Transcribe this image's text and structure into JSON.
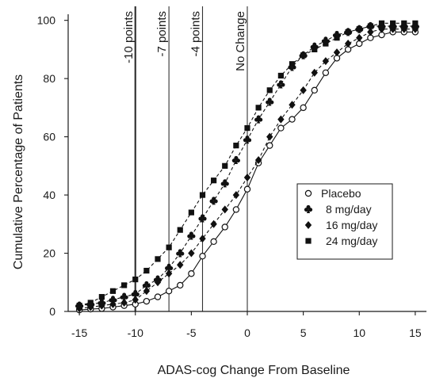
{
  "chart_data": {
    "type": "line",
    "title": "",
    "xlabel": "ADAS-cog Change From Baseline",
    "ylabel": "Cumulative Percentage of Patients",
    "xlim": [
      -16,
      16
    ],
    "ylim": [
      0,
      101
    ],
    "x_ticks": [
      -15,
      -10,
      -5,
      0,
      5,
      10,
      15
    ],
    "y_ticks": [
      0,
      20,
      40,
      60,
      80,
      100
    ],
    "grid": false,
    "legend_position": "right, middle",
    "reference_lines": [
      {
        "x": -10,
        "label": "-10 points",
        "bold": true
      },
      {
        "x": -7,
        "label": "-7 points",
        "bold": false
      },
      {
        "x": -4,
        "label": "-4 points",
        "bold": false
      },
      {
        "x": 0,
        "label": "No Change",
        "bold": false
      }
    ],
    "series": [
      {
        "name": "Placebo",
        "marker": "circle-open",
        "line": "solid",
        "color": "#111111",
        "x": [
          -15,
          -14,
          -13,
          -12,
          -11,
          -10,
          -9,
          -8,
          -7,
          -6,
          -5,
          -4,
          -3,
          -2,
          -1,
          0,
          1,
          2,
          3,
          4,
          5,
          6,
          7,
          8,
          9,
          10,
          11,
          12,
          13,
          14,
          15
        ],
        "values": [
          0.5,
          0.8,
          1,
          1.5,
          2,
          2.5,
          3.5,
          5,
          7,
          9,
          13,
          19,
          24,
          29,
          35,
          42,
          51,
          57,
          63,
          66,
          70,
          76,
          82,
          87,
          90,
          92,
          94,
          95,
          96,
          96,
          96
        ]
      },
      {
        "name": "8 mg/day",
        "marker": "club",
        "line": "dashed",
        "color": "#111111",
        "x": [
          -15,
          -14,
          -13,
          -12,
          -11,
          -10,
          -9,
          -8,
          -7,
          -6,
          -5,
          -4,
          -3,
          -2,
          -1,
          0,
          1,
          2,
          3,
          4,
          5,
          6,
          7,
          8,
          9,
          10,
          11,
          12,
          13,
          14,
          15
        ],
        "values": [
          2,
          2.5,
          3,
          4,
          5,
          6,
          9,
          11,
          15,
          20,
          26,
          32,
          38,
          44,
          52,
          59,
          66,
          72,
          78,
          84,
          88,
          91,
          93,
          95,
          96,
          97,
          98,
          98,
          98,
          98,
          98
        ]
      },
      {
        "name": "16 mg/day",
        "marker": "diamond",
        "line": "dashed",
        "color": "#111111",
        "x": [
          -15,
          -14,
          -13,
          -12,
          -11,
          -10,
          -9,
          -8,
          -7,
          -6,
          -5,
          -4,
          -3,
          -2,
          -1,
          0,
          1,
          2,
          3,
          4,
          5,
          6,
          7,
          8,
          9,
          10,
          11,
          12,
          13,
          14,
          15
        ],
        "values": [
          1,
          1.5,
          2,
          2.5,
          3,
          4,
          7,
          10,
          13,
          16,
          20,
          25,
          30,
          35,
          40,
          46,
          52,
          60,
          66,
          71,
          76,
          82,
          86,
          89,
          92,
          94,
          96,
          97,
          97,
          97,
          97
        ]
      },
      {
        "name": "24 mg/day",
        "marker": "square",
        "line": "dashed",
        "color": "#111111",
        "x": [
          -15,
          -14,
          -13,
          -12,
          -11,
          -10,
          -9,
          -8,
          -7,
          -6,
          -5,
          -4,
          -3,
          -2,
          -1,
          0,
          1,
          2,
          3,
          4,
          5,
          6,
          7,
          8,
          9,
          10,
          11,
          12,
          13,
          14,
          15
        ],
        "values": [
          2,
          3,
          5,
          7,
          9,
          11,
          14,
          18,
          22,
          28,
          34,
          40,
          45,
          50,
          57,
          63,
          70,
          76,
          81,
          85,
          88,
          90,
          92,
          94,
          96,
          97,
          98,
          99,
          99,
          99,
          99
        ]
      }
    ]
  }
}
